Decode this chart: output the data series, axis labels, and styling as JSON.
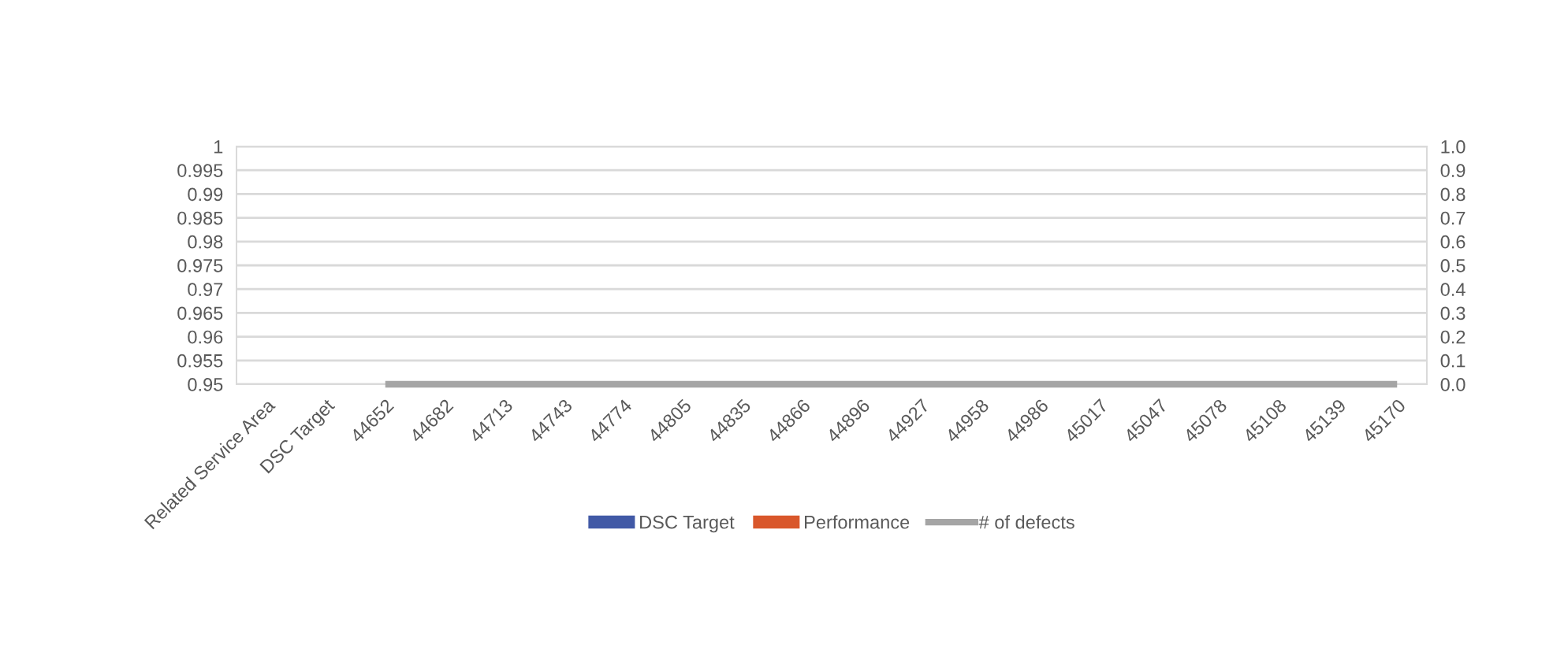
{
  "chart_data": {
    "type": "bar",
    "categories": [
      "Related Service Area",
      "DSC Target",
      "44652",
      "44682",
      "44713",
      "44743",
      "44774",
      "44805",
      "44835",
      "44866",
      "44896",
      "44927",
      "44958",
      "44986",
      "45017",
      "45047",
      "45078",
      "45108",
      "45139",
      "45170"
    ],
    "series": [
      {
        "name": "DSC Target",
        "color": "#4159a6",
        "values": [
          null,
          null,
          null,
          null,
          null,
          null,
          null,
          null,
          null,
          null,
          null,
          null,
          null,
          null,
          null,
          null,
          null,
          null,
          null,
          null
        ]
      },
      {
        "name": "Performance",
        "color": "#d9572b",
        "values": [
          null,
          null,
          null,
          null,
          null,
          null,
          null,
          null,
          null,
          null,
          null,
          null,
          null,
          null,
          null,
          null,
          null,
          null,
          null,
          null
        ]
      },
      {
        "name": "# of defects",
        "color": "#a5a5a5",
        "type": "line",
        "axis": "y2",
        "values": [
          null,
          null,
          0,
          0,
          0,
          0,
          0,
          0,
          0,
          0,
          0,
          0,
          0,
          0,
          0,
          0,
          0,
          0,
          0,
          0
        ]
      }
    ],
    "ylim": [
      0.95,
      1
    ],
    "yticks": [
      0.95,
      0.955,
      0.96,
      0.965,
      0.97,
      0.975,
      0.98,
      0.985,
      0.99,
      0.995,
      1
    ],
    "y2lim": [
      0,
      1
    ],
    "y2ticks": [
      {
        "value": 0,
        "label": "0.0"
      },
      0.1,
      0.2,
      0.3,
      0.4,
      0.5,
      0.6,
      0.7,
      0.8,
      0.9,
      {
        "value": 1,
        "label": "1.0"
      }
    ],
    "grid": "y",
    "legend": "bottom",
    "marker": "none",
    "line_style": "solid"
  }
}
